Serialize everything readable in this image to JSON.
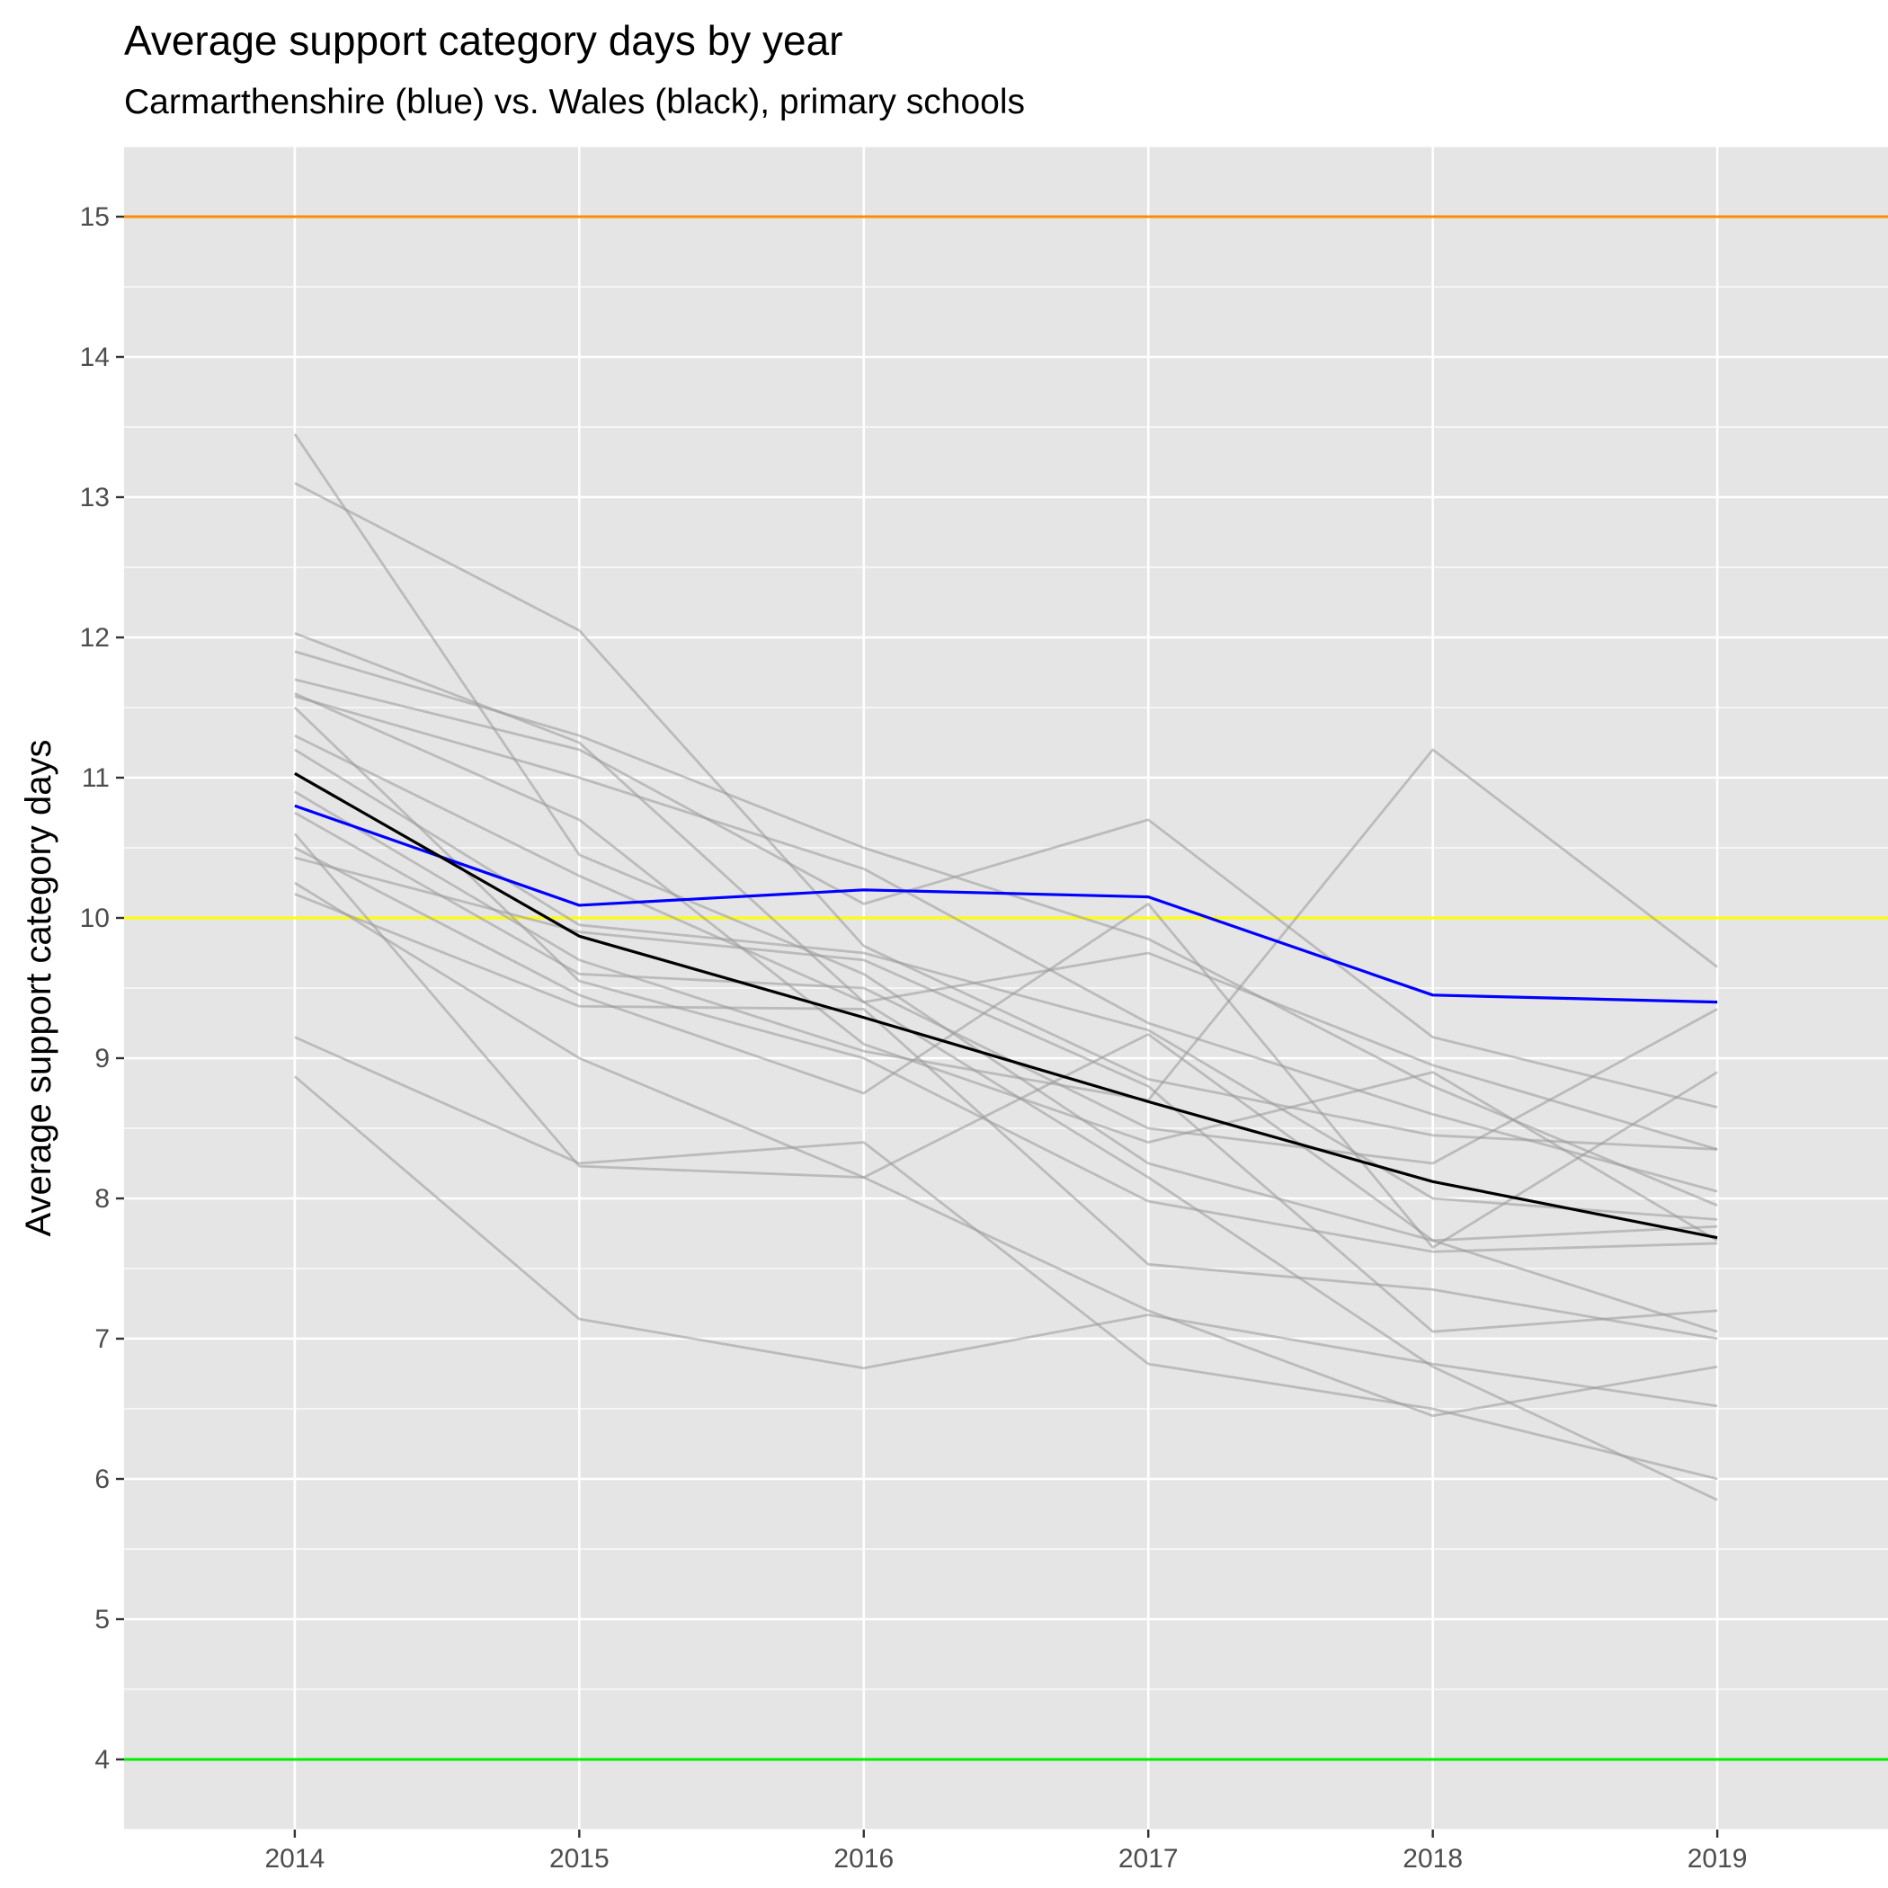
{
  "chart_data": {
    "type": "line",
    "title": "Average support category days by year",
    "subtitle": "Carmarthenshire (blue) vs. Wales (black), primary schools",
    "xlabel": "",
    "ylabel": "Average support category days",
    "x": [
      2014,
      2015,
      2016,
      2017,
      2018,
      2019
    ],
    "x_ticks": [
      "2014",
      "2015",
      "2016",
      "2017",
      "2018",
      "2019"
    ],
    "y_ticks": [
      "4",
      "5",
      "6",
      "7",
      "8",
      "9",
      "10",
      "11",
      "12",
      "13",
      "14",
      "15"
    ],
    "xlim": [
      2013.4,
      2019.6
    ],
    "ylim": [
      3.5,
      15.5
    ],
    "grid": true,
    "reference_lines": [
      {
        "y": 15,
        "color": "#ff8c00"
      },
      {
        "y": 10,
        "color": "#ffff00"
      },
      {
        "y": 4,
        "color": "#00ee00"
      }
    ],
    "highlight_series": [
      {
        "color": "#0000ff",
        "values": [
          10.8,
          10.09,
          10.2,
          10.15,
          9.45,
          9.4
        ]
      },
      {
        "color": "#000000",
        "values": [
          11.03,
          9.87,
          9.29,
          8.69,
          8.12,
          7.72
        ]
      }
    ],
    "background_series_color": "#999999",
    "background_series": [
      [
        13.45,
        10.45,
        9.6,
        8.25,
        7.7,
        7.05
      ],
      [
        13.1,
        12.05,
        9.8,
        8.85,
        8.45,
        8.35
      ],
      [
        12.03,
        11.25,
        9.4,
        8.15,
        6.8,
        5.85
      ],
      [
        11.9,
        11.3,
        10.5,
        9.85,
        8.8,
        7.95
      ],
      [
        11.7,
        11.2,
        10.1,
        10.7,
        9.15,
        8.65
      ],
      [
        11.6,
        10.7,
        9.1,
        8.4,
        8.9,
        7.7
      ],
      [
        11.58,
        11.0,
        10.35,
        9.25,
        8.6,
        8.05
      ],
      [
        11.3,
        10.3,
        9.4,
        9.75,
        8.95,
        8.35
      ],
      [
        11.2,
        9.95,
        9.75,
        9.2,
        8.0,
        7.85
      ],
      [
        10.9,
        9.7,
        9.05,
        8.7,
        11.2,
        9.65
      ],
      [
        10.75,
        9.6,
        9.5,
        8.5,
        8.25,
        9.35
      ],
      [
        10.5,
        9.45,
        8.75,
        10.1,
        7.65,
        8.9
      ],
      [
        10.43,
        9.9,
        9.7,
        8.8,
        7.05,
        7.2
      ],
      [
        10.25,
        9.0,
        8.15,
        7.2,
        6.45,
        6.8
      ],
      [
        10.17,
        9.37,
        9.35,
        7.53,
        7.35,
        7.0
      ],
      [
        9.15,
        8.25,
        8.4,
        6.82,
        6.5,
        6.0
      ],
      [
        8.87,
        7.14,
        6.79,
        7.17,
        6.82,
        6.52
      ],
      [
        11.5,
        9.55,
        9.0,
        7.98,
        7.62,
        7.68
      ],
      [
        10.6,
        8.23,
        8.15,
        9.17,
        7.7,
        7.8
      ]
    ]
  }
}
